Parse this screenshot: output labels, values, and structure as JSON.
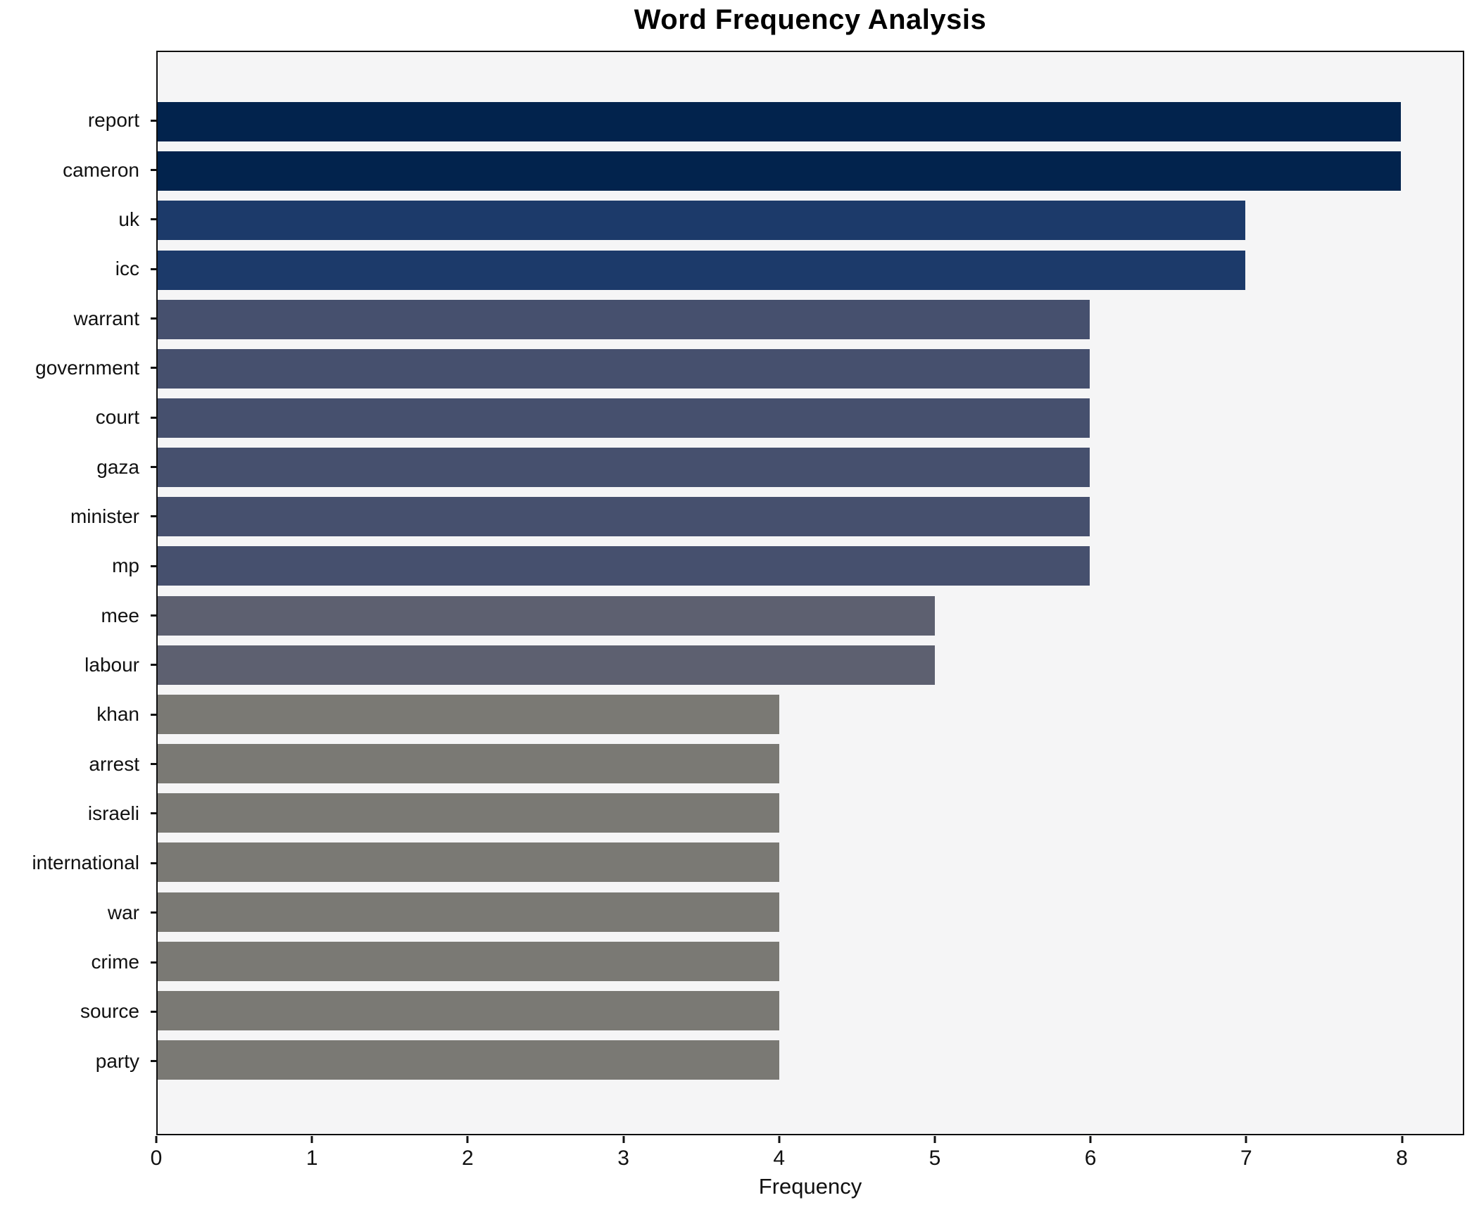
{
  "title": "Word Frequency Analysis",
  "xlabel": "Frequency",
  "chart_data": {
    "type": "bar",
    "orientation": "horizontal",
    "title": "Word Frequency Analysis",
    "xlabel": "Frequency",
    "ylabel": "",
    "categories": [
      "report",
      "cameron",
      "uk",
      "icc",
      "warrant",
      "government",
      "court",
      "gaza",
      "minister",
      "mp",
      "mee",
      "labour",
      "khan",
      "arrest",
      "israeli",
      "international",
      "war",
      "crime",
      "source",
      "party"
    ],
    "values": [
      8,
      8,
      7,
      7,
      6,
      6,
      6,
      6,
      6,
      6,
      5,
      5,
      4,
      4,
      4,
      4,
      4,
      4,
      4,
      4
    ],
    "xticks": [
      0,
      1,
      2,
      3,
      4,
      5,
      6,
      7,
      8
    ],
    "xlim": [
      0,
      8.4
    ],
    "grid": false,
    "legend": false,
    "bar_colors_by_value": {
      "8": "#02234d",
      "7": "#1c3a6a",
      "6": "#46506e",
      "5": "#5d6070",
      "4": "#7a7974"
    },
    "plot_background": "#f5f5f6",
    "figure_background": "#ffffff",
    "spine_color": "#0e0e0e",
    "text_color": "#111111"
  }
}
